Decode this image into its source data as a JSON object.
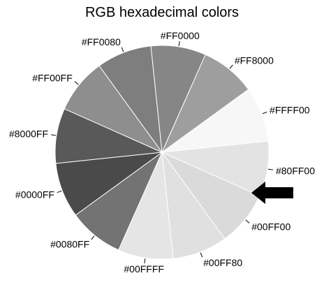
{
  "chart_data": {
    "type": "pie",
    "title": "RGB hexadecimal colors",
    "start_angle_deg": -96,
    "direction": "clockwise",
    "slices": [
      {
        "label": "#FF0000",
        "value": 1,
        "color": "#868686"
      },
      {
        "label": "#FF8000",
        "value": 1,
        "color": "#9e9e9e"
      },
      {
        "label": "#FFFF00",
        "value": 1,
        "color": "#f7f7f7"
      },
      {
        "label": "#80FF00",
        "value": 1,
        "color": "#e3e3e3"
      },
      {
        "label": "#00FF00",
        "value": 1,
        "color": "#dadada"
      },
      {
        "label": "#00FF80",
        "value": 1,
        "color": "#e0e0e0"
      },
      {
        "label": "#00FFFF",
        "value": 1,
        "color": "#e5e5e5"
      },
      {
        "label": "#0080FF",
        "value": 1,
        "color": "#737373"
      },
      {
        "label": "#0000FF",
        "value": 1,
        "color": "#4a4a4a"
      },
      {
        "label": "#8000FF",
        "value": 1,
        "color": "#595959"
      },
      {
        "label": "#FF00FF",
        "value": 1,
        "color": "#8e8e8e"
      },
      {
        "label": "#FF0080",
        "value": 1,
        "color": "#7e7e7e"
      }
    ],
    "highlighted_slice": "#00FF00",
    "annotation_arrow_color": "#000000"
  }
}
